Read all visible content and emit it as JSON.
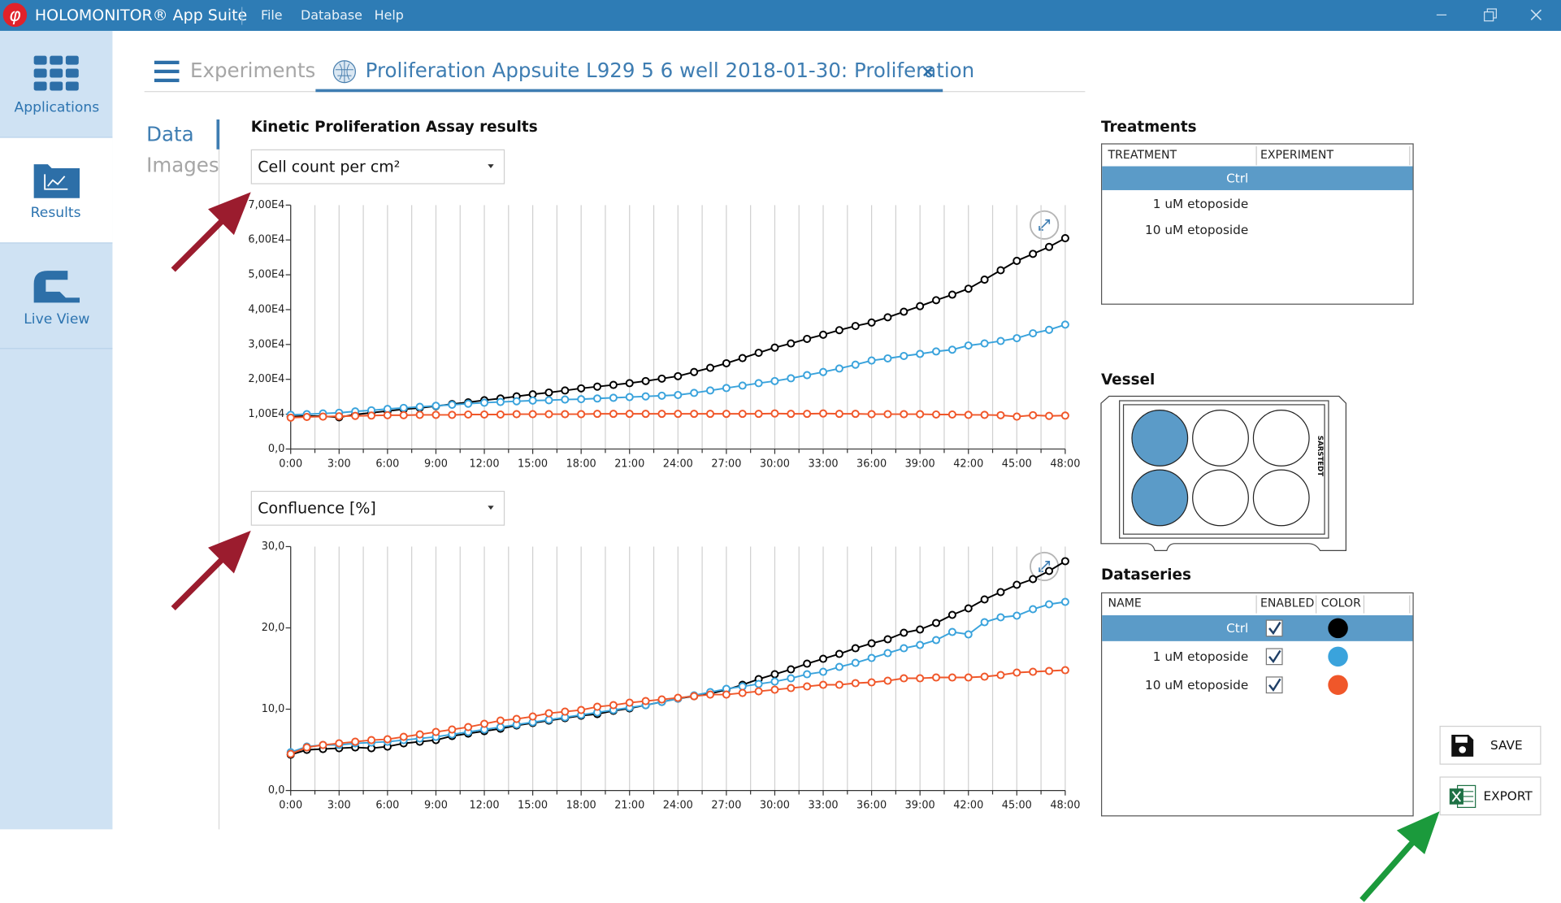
{
  "title_bar": {
    "app_name": "HOLOMONITOR® App Suite",
    "menu": [
      "File",
      "Database",
      "Help"
    ]
  },
  "sidebar": [
    "Applications",
    "Results",
    "Live View"
  ],
  "tabs": {
    "experiments": "Experiments",
    "active": "Proliferation Appsuite L929 5 6 well 2018-01-30: Proliferation"
  },
  "subnav": [
    "Data",
    "Images"
  ],
  "results_title": "Kinetic Proliferation Assay results",
  "chart_data": [
    {
      "type": "line",
      "selector": "Cell count per cm²",
      "x": [
        0,
        1,
        2,
        3,
        4,
        5,
        6,
        7,
        8,
        9,
        10,
        11,
        12,
        13,
        14,
        15,
        16,
        17,
        18,
        19,
        20,
        21,
        22,
        23,
        24,
        25,
        26,
        27,
        28,
        29,
        30,
        31,
        32,
        33,
        34,
        35,
        36,
        37,
        38,
        39,
        40,
        41,
        42,
        43,
        44,
        45,
        46,
        47,
        48
      ],
      "xlim": [
        0,
        48
      ],
      "xticks": [
        {
          "value": 0,
          "label": "0:00"
        },
        {
          "value": 3,
          "label": "3:00"
        },
        {
          "value": 6,
          "label": "6:00"
        },
        {
          "value": 9,
          "label": "9:00"
        },
        {
          "value": 12,
          "label": "12:00"
        },
        {
          "value": 15,
          "label": "15:00"
        },
        {
          "value": 18,
          "label": "18:00"
        },
        {
          "value": 21,
          "label": "21:00"
        },
        {
          "value": 24,
          "label": "24:00"
        },
        {
          "value": 27,
          "label": "27:00"
        },
        {
          "value": 30,
          "label": "30:00"
        },
        {
          "value": 33,
          "label": "33:00"
        },
        {
          "value": 36,
          "label": "36:00"
        },
        {
          "value": 39,
          "label": "39:00"
        },
        {
          "value": 42,
          "label": "42:00"
        },
        {
          "value": 45,
          "label": "45:00"
        },
        {
          "value": 48,
          "label": "48:00"
        }
      ],
      "xminor": [
        1.5,
        4.5,
        7.5,
        10.5,
        13.5,
        16.5,
        19.5,
        22.5,
        25.5,
        28.5,
        31.5,
        34.5,
        37.5,
        40.5,
        43.5,
        46.5
      ],
      "ylim": [
        0,
        70000
      ],
      "yticks": [
        {
          "value": 0,
          "label": "0,0"
        },
        {
          "value": 10000,
          "label": "1,00E4"
        },
        {
          "value": 20000,
          "label": "2,00E4"
        },
        {
          "value": 30000,
          "label": "3,00E4"
        },
        {
          "value": 40000,
          "label": "4,00E4"
        },
        {
          "value": 50000,
          "label": "5,00E4"
        },
        {
          "value": 60000,
          "label": "6,00E4"
        },
        {
          "value": 70000,
          "label": "7,00E4"
        }
      ],
      "grid": "x",
      "series": [
        {
          "color": "#000000",
          "values": [
            9300,
            9500,
            9400,
            9100,
            9900,
            10400,
            10900,
            11400,
            11800,
            12300,
            12900,
            13400,
            14000,
            14500,
            15100,
            15700,
            16200,
            16800,
            17400,
            17900,
            18400,
            18900,
            19500,
            20200,
            20900,
            22100,
            23300,
            24600,
            26100,
            27600,
            29100,
            30300,
            31600,
            32800,
            34100,
            35300,
            36300,
            37800,
            39400,
            41000,
            42700,
            44300,
            46000,
            48600,
            51300,
            54000,
            56000,
            58000,
            60500
          ]
        },
        {
          "color": "#3aa3dc",
          "values": [
            9800,
            10000,
            10200,
            10400,
            10800,
            11100,
            11500,
            11800,
            12100,
            12400,
            12700,
            13000,
            13300,
            13500,
            13700,
            13900,
            14000,
            14200,
            14300,
            14500,
            14700,
            14900,
            15100,
            15300,
            15500,
            16100,
            16800,
            17500,
            18200,
            18900,
            19500,
            20300,
            21200,
            22100,
            23100,
            24200,
            25400,
            26000,
            26700,
            27300,
            28000,
            28500,
            29700,
            30300,
            31000,
            31800,
            33200,
            34200,
            35700
          ]
        },
        {
          "color": "#f0572a",
          "values": [
            9000,
            9200,
            9300,
            9400,
            9500,
            9600,
            9700,
            9700,
            9800,
            9800,
            9800,
            9900,
            9900,
            9900,
            10000,
            10000,
            10000,
            10000,
            10000,
            10100,
            10100,
            10100,
            10100,
            10100,
            10100,
            10100,
            10100,
            10100,
            10100,
            10100,
            10200,
            10100,
            10100,
            10200,
            10100,
            10100,
            10000,
            10000,
            10000,
            10000,
            9900,
            9900,
            9800,
            9800,
            9700,
            9300,
            9700,
            9500,
            9600
          ]
        }
      ]
    },
    {
      "type": "line",
      "selector": "Confluence [%]",
      "x": [
        0,
        1,
        2,
        3,
        4,
        5,
        6,
        7,
        8,
        9,
        10,
        11,
        12,
        13,
        14,
        15,
        16,
        17,
        18,
        19,
        20,
        21,
        22,
        23,
        24,
        25,
        26,
        27,
        28,
        29,
        30,
        31,
        32,
        33,
        34,
        35,
        36,
        37,
        38,
        39,
        40,
        41,
        42,
        43,
        44,
        45,
        46,
        47,
        48
      ],
      "xlim": [
        0,
        48
      ],
      "xticks": [
        {
          "value": 0,
          "label": "0:00"
        },
        {
          "value": 3,
          "label": "3:00"
        },
        {
          "value": 6,
          "label": "6:00"
        },
        {
          "value": 9,
          "label": "9:00"
        },
        {
          "value": 12,
          "label": "12:00"
        },
        {
          "value": 15,
          "label": "15:00"
        },
        {
          "value": 18,
          "label": "18:00"
        },
        {
          "value": 21,
          "label": "21:00"
        },
        {
          "value": 24,
          "label": "24:00"
        },
        {
          "value": 27,
          "label": "27:00"
        },
        {
          "value": 30,
          "label": "30:00"
        },
        {
          "value": 33,
          "label": "33:00"
        },
        {
          "value": 36,
          "label": "36:00"
        },
        {
          "value": 39,
          "label": "39:00"
        },
        {
          "value": 42,
          "label": "42:00"
        },
        {
          "value": 45,
          "label": "45:00"
        },
        {
          "value": 48,
          "label": "48:00"
        }
      ],
      "xminor": [
        1.5,
        4.5,
        7.5,
        10.5,
        13.5,
        16.5,
        19.5,
        22.5,
        25.5,
        28.5,
        31.5,
        34.5,
        37.5,
        40.5,
        43.5,
        46.5
      ],
      "ylim": [
        0,
        30
      ],
      "yticks": [
        {
          "value": 0,
          "label": "0,0"
        },
        {
          "value": 10,
          "label": "10,0"
        },
        {
          "value": 20,
          "label": "20,0"
        },
        {
          "value": 30,
          "label": "30,0"
        }
      ],
      "grid": "x",
      "series": [
        {
          "color": "#000000",
          "values": [
            4.4,
            5.0,
            5.1,
            5.2,
            5.3,
            5.2,
            5.4,
            5.8,
            6.0,
            6.2,
            6.7,
            7.0,
            7.3,
            7.6,
            8.0,
            8.3,
            8.6,
            8.9,
            9.2,
            9.4,
            9.8,
            10.1,
            10.5,
            10.9,
            11.3,
            11.6,
            11.9,
            12.4,
            13.0,
            13.7,
            14.3,
            14.9,
            15.6,
            16.2,
            16.8,
            17.5,
            18.1,
            18.6,
            19.4,
            19.8,
            20.6,
            21.6,
            22.4,
            23.5,
            24.4,
            25.3,
            26.0,
            27.0,
            28.2
          ]
        },
        {
          "color": "#3aa3dc",
          "values": [
            4.7,
            5.4,
            5.6,
            5.6,
            5.8,
            5.9,
            6.0,
            6.2,
            6.4,
            6.6,
            6.9,
            7.2,
            7.5,
            7.8,
            8.1,
            8.4,
            8.7,
            9.0,
            9.3,
            9.6,
            9.9,
            10.2,
            10.5,
            10.9,
            11.3,
            11.7,
            12.1,
            12.5,
            12.8,
            13.1,
            13.4,
            13.8,
            14.3,
            14.6,
            15.2,
            15.7,
            16.3,
            16.9,
            17.5,
            17.9,
            18.5,
            19.5,
            19.2,
            20.7,
            21.3,
            21.5,
            22.3,
            22.9,
            23.2
          ]
        },
        {
          "color": "#f0572a",
          "values": [
            4.5,
            5.3,
            5.6,
            5.8,
            6.0,
            6.2,
            6.3,
            6.6,
            6.9,
            7.2,
            7.5,
            7.8,
            8.2,
            8.6,
            8.8,
            9.1,
            9.5,
            9.7,
            9.9,
            10.3,
            10.5,
            10.8,
            11.0,
            11.2,
            11.4,
            11.6,
            11.8,
            11.8,
            12.0,
            12.2,
            12.4,
            12.6,
            12.8,
            13.0,
            13.0,
            13.2,
            13.3,
            13.5,
            13.8,
            13.8,
            13.9,
            13.9,
            13.9,
            14.0,
            14.2,
            14.5,
            14.6,
            14.7,
            14.8
          ]
        }
      ]
    }
  ],
  "treatments": {
    "title": "Treatments",
    "columns": [
      "TREATMENT",
      "EXPERIMENT"
    ],
    "rows": [
      "Ctrl",
      "1 uM etoposide",
      "10 uM etoposide"
    ],
    "selected": 0
  },
  "vessel": {
    "title": "Vessel",
    "brand": "SARSTEDT"
  },
  "dataseries": {
    "title": "Dataseries",
    "columns": [
      "NAME",
      "ENABLED",
      "COLOR"
    ],
    "rows": [
      {
        "name": "Ctrl",
        "enabled": true
      },
      {
        "name": "1 uM etoposide",
        "enabled": true
      },
      {
        "name": "10 uM etoposide",
        "enabled": true
      }
    ],
    "selected": 0
  },
  "buttons": [
    "SAVE",
    "EXPORT"
  ]
}
